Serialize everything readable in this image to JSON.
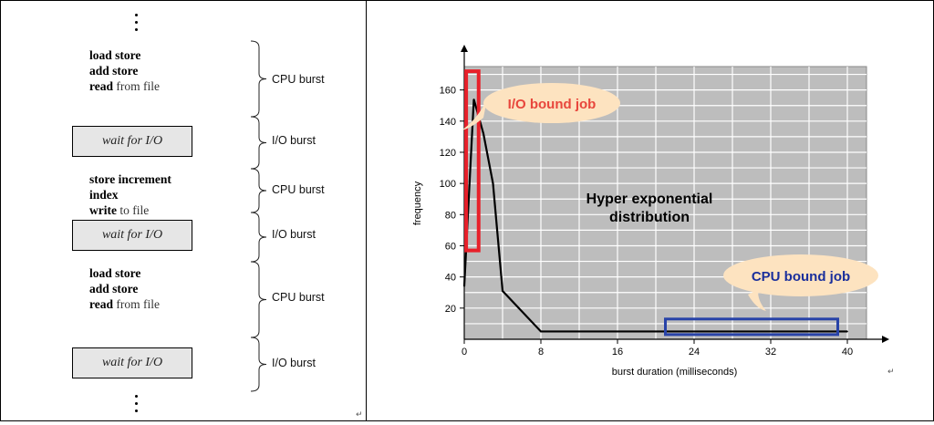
{
  "left": {
    "blocks": [
      {
        "kind": "code",
        "lines": [
          {
            "kw": "load store"
          },
          {
            "kw": "add store"
          },
          {
            "kw": "read",
            "rest": " from file"
          }
        ]
      },
      {
        "kind": "wait",
        "text": "wait for I/O"
      },
      {
        "kind": "code",
        "lines": [
          {
            "kw": "store increment"
          },
          {
            "kw": "index"
          },
          {
            "kw": "write",
            "rest": " to file"
          }
        ]
      },
      {
        "kind": "wait",
        "text": "wait for I/O"
      },
      {
        "kind": "code",
        "lines": [
          {
            "kw": "load store"
          },
          {
            "kw": "add store"
          },
          {
            "kw": "read",
            "rest": " from file"
          }
        ]
      },
      {
        "kind": "wait",
        "text": "wait for I/O"
      }
    ],
    "bursts": [
      "CPU burst",
      "I/O burst",
      "CPU burst",
      "I/O burst",
      "CPU burst",
      "I/O burst"
    ],
    "paragraph_mark": "↵"
  },
  "chart_data": {
    "type": "line",
    "xlabel": "burst duration (milliseconds)",
    "ylabel": "frequency",
    "x_ticks": [
      0,
      8,
      16,
      24,
      32,
      40
    ],
    "y_ticks": [
      20,
      40,
      60,
      80,
      100,
      120,
      140,
      160
    ],
    "xlim": [
      0,
      42
    ],
    "ylim": [
      0,
      175
    ],
    "grid": true,
    "series": [
      {
        "x": [
          0,
          1,
          2,
          3,
          4,
          8,
          16,
          24,
          32,
          40
        ],
        "y": [
          34,
          154,
          132,
          100,
          31,
          5,
          5,
          5,
          5,
          5
        ]
      }
    ],
    "annotation_center": [
      "Hyper exponential",
      "distribution"
    ],
    "callouts": [
      {
        "text": "I/O bound job",
        "color": "#e8463c",
        "box_color": "#e8202a"
      },
      {
        "text": "CPU bound job",
        "color": "#1a2f9c",
        "box_color": "#2843a8"
      }
    ],
    "paragraph_mark": "↵"
  },
  "colors": {
    "grid_bg": "#bdbdbd",
    "grid_line": "#ffffff",
    "callout_fill": "#fde3c0",
    "line": "#000000"
  }
}
